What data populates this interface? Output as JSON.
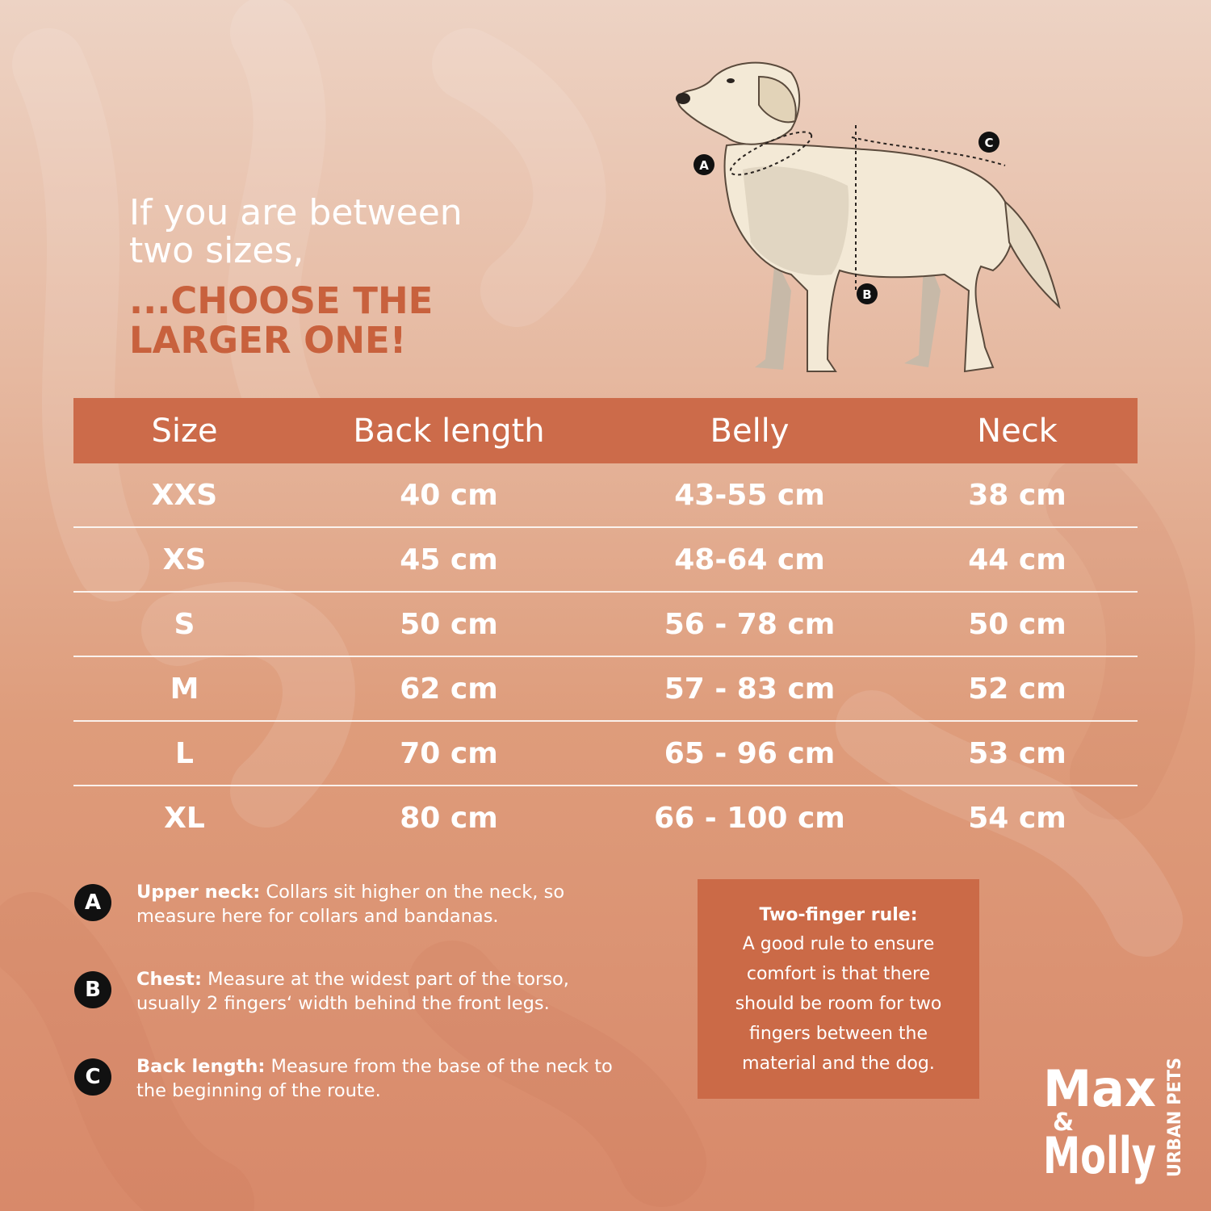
{
  "headline": {
    "line1": "If you are between",
    "line2": "two sizes,",
    "emph1": "...CHOOSE THE",
    "emph2": "LARGER ONE!"
  },
  "diagram": {
    "label_a": "A",
    "label_b": "B",
    "label_c": "C"
  },
  "table": {
    "headers": [
      "Size",
      "Back length",
      "Belly",
      "Neck"
    ],
    "rows": [
      [
        "XXS",
        "40 cm",
        "43-55 cm",
        "38 cm"
      ],
      [
        "XS",
        "45 cm",
        "48-64 cm",
        "44 cm"
      ],
      [
        "S",
        "50 cm",
        "56 - 78 cm",
        "50 cm"
      ],
      [
        "M",
        "62 cm",
        "57 - 83 cm",
        "52 cm"
      ],
      [
        "L",
        "70 cm",
        "65 - 96 cm",
        "53 cm"
      ],
      [
        "XL",
        "80 cm",
        "66 - 100 cm",
        "54 cm"
      ]
    ]
  },
  "notes": [
    {
      "badge": "A",
      "title": "Upper neck:",
      "text": " Collars sit higher on the neck, so",
      "text2": "measure here for collars and bandanas."
    },
    {
      "badge": "B",
      "title": "Chest:",
      "text": " Measure at the widest part of the torso,",
      "text2": "usually 2 fingers‘ width behind the front legs."
    },
    {
      "badge": "C",
      "title": "Back length:",
      "text": " Measure from the base of the neck to",
      "text2": "the beginning of the route."
    }
  ],
  "rule": {
    "title": "Two-finger rule:",
    "lines": [
      "A good rule to ensure",
      "comfort is that there",
      "should be room for two",
      "fingers between the",
      "material and the dog."
    ]
  },
  "logo": {
    "line1": "Max",
    "amp": "&",
    "line2": "Molly",
    "side": "URBAN PETS"
  },
  "colors": {
    "accent": "#cc6b4a",
    "headline_accent": "#c8613d",
    "badge": "#111111",
    "text": "#ffffff"
  }
}
